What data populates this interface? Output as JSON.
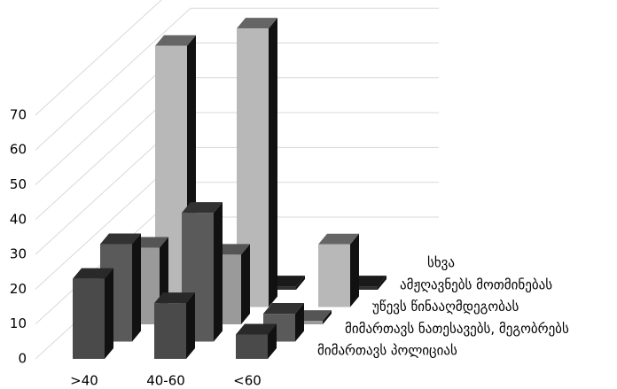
{
  "chart_data": {
    "type": "bar3d",
    "categories": [
      ">40",
      "40-60",
      "<60"
    ],
    "series": [
      {
        "name": "მიმართავს პოლიციას",
        "color": "#4a4a4a",
        "values": [
          23,
          16,
          7
        ]
      },
      {
        "name": "მიმართავს ნათესავებს, მეგობრებს",
        "color": "#5a5a5a",
        "values": [
          28,
          37,
          8
        ]
      },
      {
        "name": "უწევს წინააღმდეგობას",
        "color": "#9a9a9a",
        "values": [
          22,
          20,
          1
        ]
      },
      {
        "name": "ამჟღავნებს მოთმინებას",
        "color": "#b8b8b8",
        "values": [
          75,
          80,
          18
        ]
      },
      {
        "name": "სხვა",
        "color": "#303030",
        "values": [
          0,
          1,
          1
        ]
      }
    ],
    "ylim": [
      0,
      80
    ],
    "yticks": [
      0,
      10,
      20,
      30,
      40,
      50,
      60,
      70
    ],
    "grid": true
  }
}
